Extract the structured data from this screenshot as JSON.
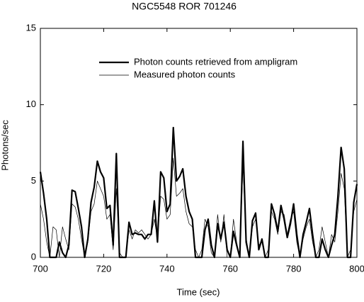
{
  "chart_data": {
    "type": "line",
    "title": "NGC5548   ROR 701246",
    "x_label": "Time (sec)",
    "y_label": "Photons/sec",
    "xlim": [
      700,
      800
    ],
    "xticks": [
      700,
      720,
      740,
      760,
      780,
      800
    ],
    "ylim": [
      0,
      15
    ],
    "yticks": [
      0,
      5,
      10,
      15
    ],
    "x": [
      700,
      701,
      702,
      703,
      704,
      705,
      706,
      707,
      708,
      709,
      710,
      711,
      712,
      713,
      714,
      715,
      716,
      717,
      718,
      719,
      720,
      721,
      722,
      723,
      724,
      725,
      726,
      727,
      728,
      729,
      730,
      731,
      732,
      733,
      734,
      735,
      736,
      737,
      738,
      739,
      740,
      741,
      742,
      743,
      744,
      745,
      746,
      747,
      748,
      749,
      750,
      751,
      752,
      753,
      754,
      755,
      756,
      757,
      758,
      759,
      760,
      761,
      762,
      763,
      764,
      765,
      766,
      767,
      768,
      769,
      770,
      771,
      772,
      773,
      774,
      775,
      776,
      777,
      778,
      779,
      780,
      781,
      782,
      783,
      784,
      785,
      786,
      787,
      788,
      789,
      790,
      791,
      792,
      793,
      794,
      795,
      796,
      797,
      798,
      799,
      800
    ],
    "series": [
      {
        "name": "Photon counts retrieved from ampligram",
        "color": "#000000",
        "width": 2.2,
        "values": [
          5.6,
          4.2,
          2.5,
          0,
          0,
          0,
          1,
          0.3,
          0,
          0.8,
          4.4,
          4.3,
          3.2,
          2,
          0,
          1.2,
          3.6,
          4.6,
          6.3,
          5.6,
          5.2,
          3.2,
          3.4,
          0.8,
          6.8,
          0,
          0,
          0,
          2.3,
          1.5,
          1.6,
          1.5,
          1.5,
          1.2,
          1.5,
          1.5,
          3.7,
          1,
          5.6,
          5.2,
          3,
          3.5,
          8.5,
          5,
          5.3,
          5.8,
          4,
          3,
          2.5,
          0,
          0,
          0,
          1.8,
          2.5,
          0.8,
          0,
          2.2,
          1.2,
          2.3,
          0.5,
          0,
          1.7,
          0.8,
          0,
          7.6,
          1,
          0,
          2.4,
          2.9,
          0.5,
          1.2,
          0,
          0,
          3.5,
          2.8,
          1.7,
          3.4,
          2.5,
          1.3,
          2.2,
          3.5,
          1.5,
          0,
          1.5,
          2.3,
          3.2,
          1.5,
          0,
          0,
          1.2,
          0.5,
          0,
          0.8,
          1.5,
          4,
          7.2,
          5.8,
          0,
          0,
          3.6,
          4.8
        ]
      },
      {
        "name": "Measured photon counts",
        "color": "#000000",
        "width": 0.7,
        "values": [
          3.5,
          2.5,
          1,
          0,
          2,
          1.8,
          0,
          2,
          1.2,
          0.5,
          3.5,
          3.3,
          2.5,
          1.2,
          0,
          1,
          3,
          3.5,
          5,
          4.5,
          4,
          2.5,
          2.8,
          0.5,
          4.5,
          0.3,
          0,
          0,
          1.8,
          1.2,
          1.8,
          1.6,
          1.8,
          1.5,
          1.2,
          1.5,
          2.5,
          1.2,
          4,
          3.8,
          2.5,
          2.8,
          6.5,
          4,
          4.2,
          4.5,
          3,
          2.2,
          2,
          0.5,
          0,
          0.5,
          2.5,
          2,
          0.3,
          0,
          2.8,
          1,
          2.8,
          0,
          0,
          2.5,
          1,
          0,
          6,
          1.3,
          0,
          2,
          2.5,
          0.8,
          1,
          0,
          0.5,
          3,
          2.5,
          1.5,
          3,
          2.8,
          1.5,
          2.5,
          3,
          1,
          0,
          1.2,
          2,
          2.5,
          1,
          0,
          0.5,
          2,
          1,
          0,
          1.5,
          1,
          3,
          5.5,
          4.5,
          0,
          0.5,
          3,
          3.8
        ]
      }
    ]
  }
}
